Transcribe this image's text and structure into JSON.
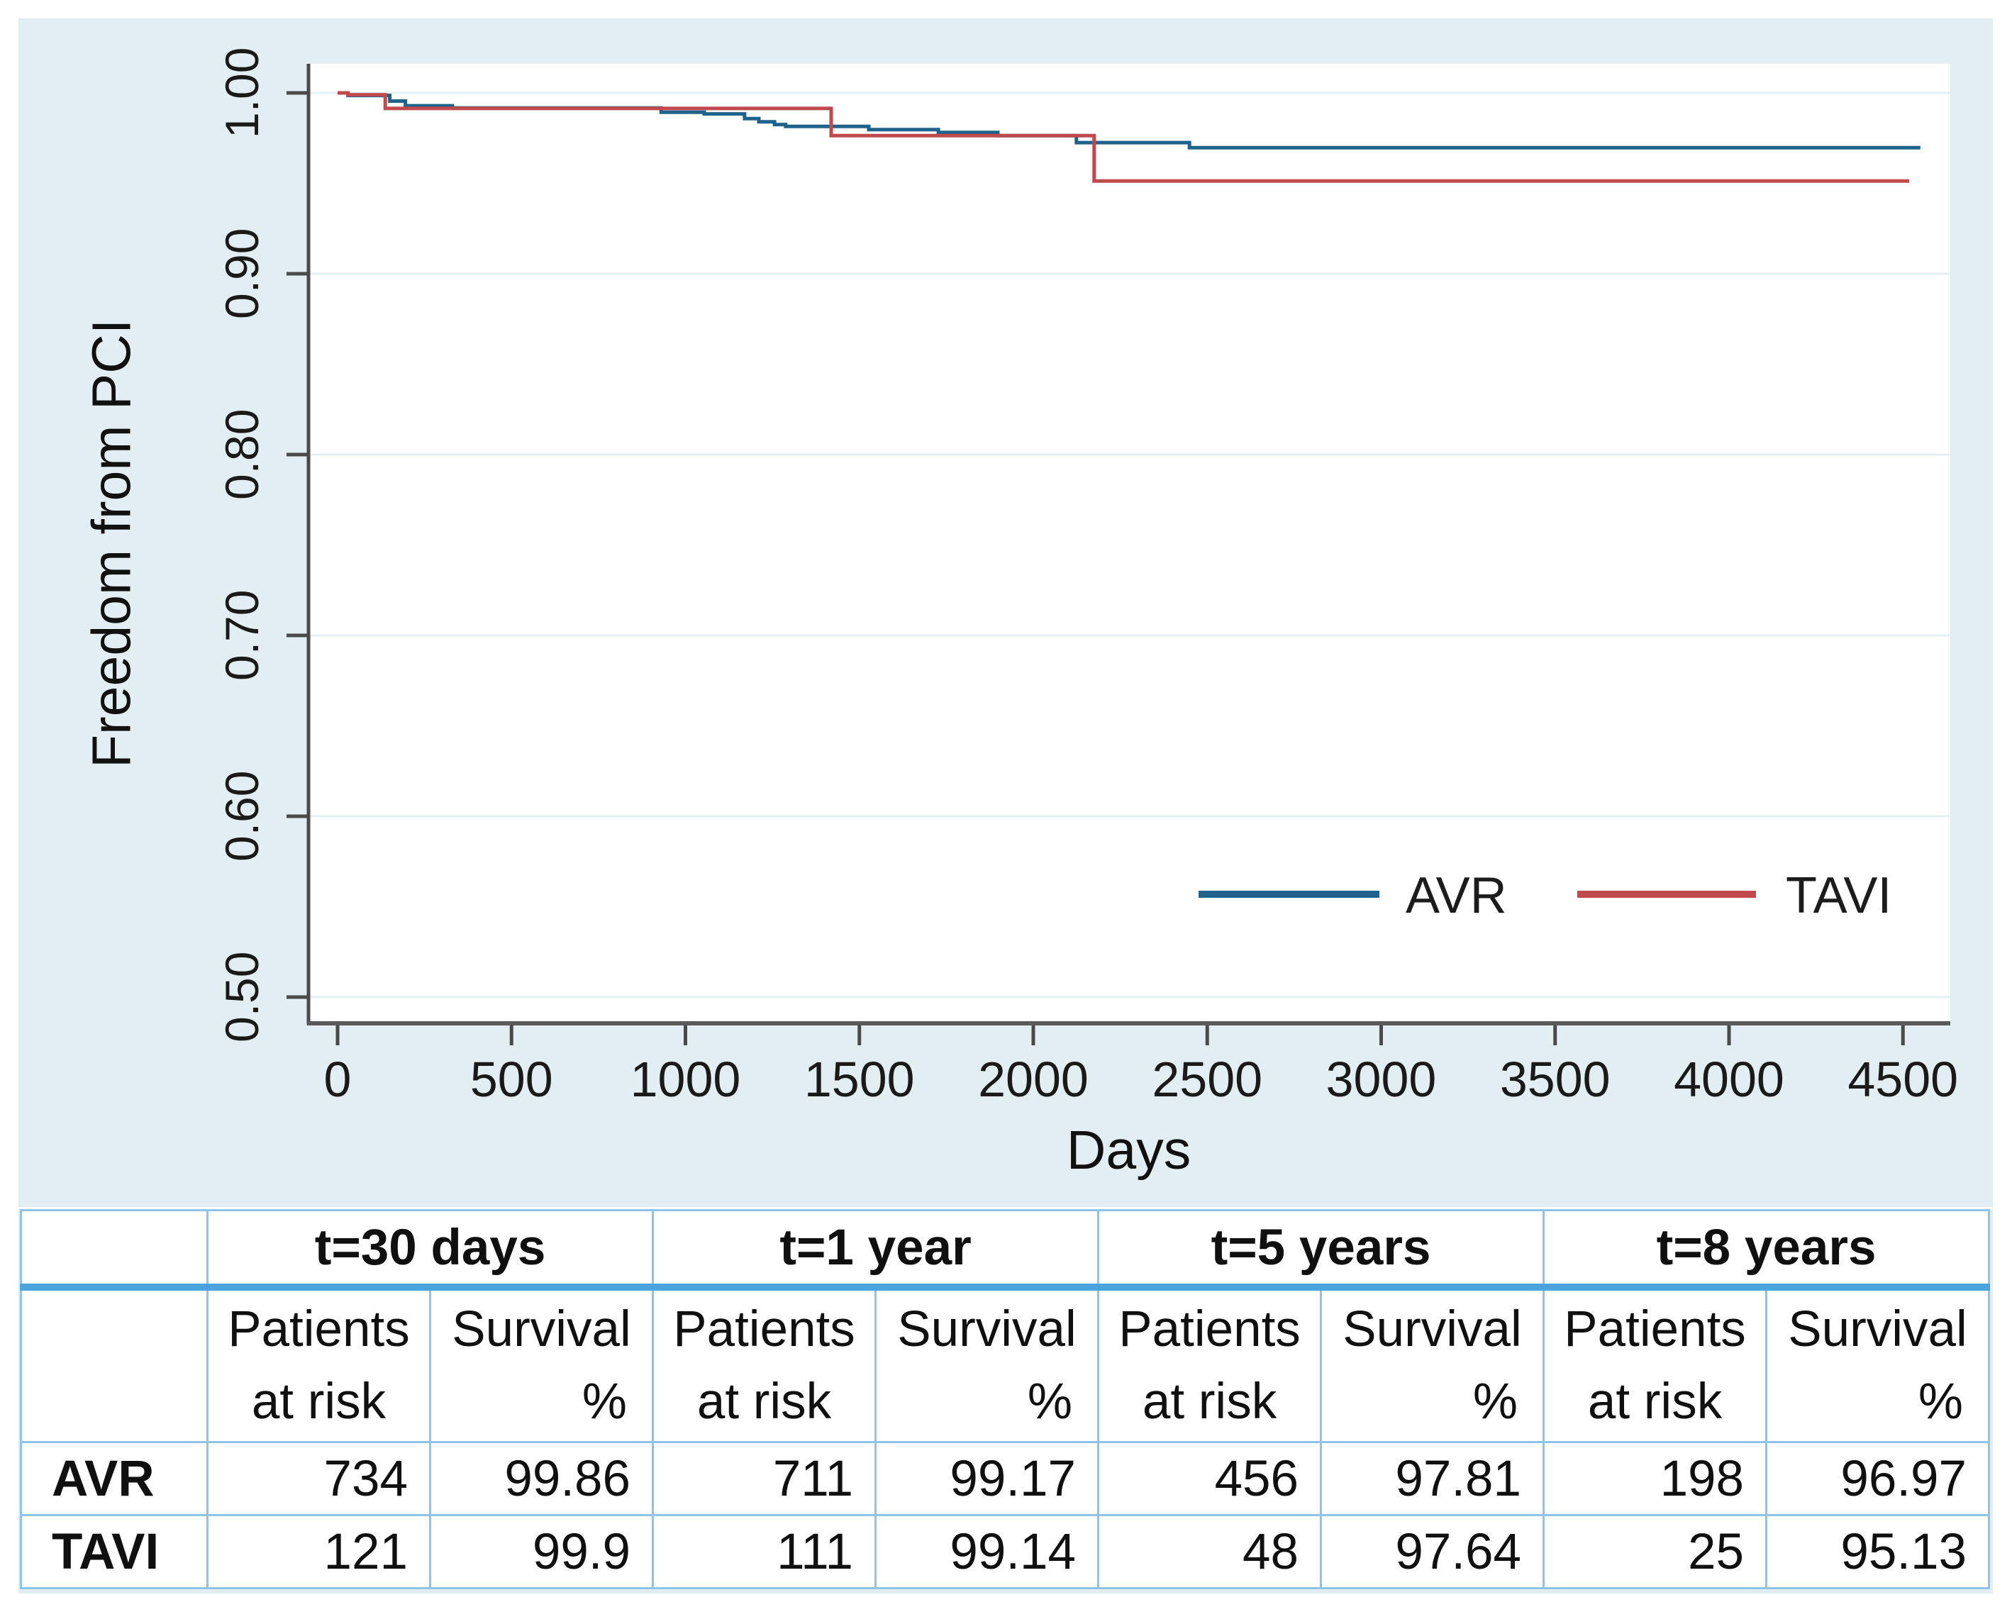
{
  "chart_data": {
    "type": "line",
    "subtype": "kaplan_meier_step_curves",
    "title": "",
    "xlabel": "Days",
    "ylabel": "Freedom from PCI",
    "xlim": [
      -88,
      4640
    ],
    "ylim": [
      0.484,
      1.016
    ],
    "x_ticks": [
      0,
      500,
      1000,
      1500,
      2000,
      2500,
      3000,
      3500,
      4000,
      4500
    ],
    "x_tick_labels": [
      "0",
      "500",
      "1000",
      "1500",
      "2000",
      "2500",
      "3000",
      "3500",
      "4000",
      "4500"
    ],
    "y_ticks": [
      1.0,
      0.9,
      0.8,
      0.7,
      0.6,
      0.5
    ],
    "y_tick_labels": [
      "1.00",
      "0.90",
      "0.80",
      "0.70",
      "0.60",
      "0.50"
    ],
    "grid": "horizontal",
    "legend": {
      "location": "inside-bottom-right",
      "entries": [
        "AVR",
        "TAVI"
      ]
    },
    "series": [
      {
        "name": "AVR",
        "color": "#1f628c",
        "end_x": 4550,
        "steps": [
          [
            0,
            1.0
          ],
          [
            30,
            0.9986
          ],
          [
            150,
            0.9955
          ],
          [
            195,
            0.9929
          ],
          [
            330,
            0.9917
          ],
          [
            930,
            0.9893
          ],
          [
            1054,
            0.9884
          ],
          [
            1170,
            0.9858
          ],
          [
            1211,
            0.984
          ],
          [
            1256,
            0.9825
          ],
          [
            1288,
            0.9815
          ],
          [
            1527,
            0.9797
          ],
          [
            1727,
            0.9781
          ],
          [
            1898,
            0.9764
          ],
          [
            2124,
            0.9725
          ],
          [
            2449,
            0.9697
          ]
        ]
      },
      {
        "name": "TAVI",
        "color": "#c0494e",
        "end_x": 4518,
        "steps": [
          [
            0,
            1.0
          ],
          [
            30,
            0.999
          ],
          [
            137,
            0.9914
          ],
          [
            1419,
            0.9764
          ],
          [
            2175,
            0.9513
          ]
        ]
      }
    ]
  },
  "risk_table": {
    "col_groups": [
      "t=30 days",
      "t=1 year",
      "t=5 years",
      "t=8 years"
    ],
    "sub_headers": {
      "patients": "Patients",
      "at_risk": "at risk",
      "survival": "Survival",
      "percent": "%"
    },
    "rows": [
      {
        "label": "AVR",
        "values": [
          "734",
          "99.86",
          "711",
          "99.17",
          "456",
          "97.81",
          "198",
          "96.97"
        ]
      },
      {
        "label": "TAVI",
        "values": [
          "121",
          "99.9",
          "111",
          "99.14",
          "48",
          "97.64",
          "25",
          "95.13"
        ]
      }
    ]
  },
  "colors": {
    "figure_background": "#e2eef1",
    "plot_background": "#ffffff",
    "gridline": "#e4f1f3",
    "axis": "#4a4a4a",
    "avr_line": "#1f628c",
    "tavi_line": "#c0494e",
    "table_border": "#8ec4ea",
    "table_header_separator": "#4aa3dc",
    "text": "#141414"
  }
}
